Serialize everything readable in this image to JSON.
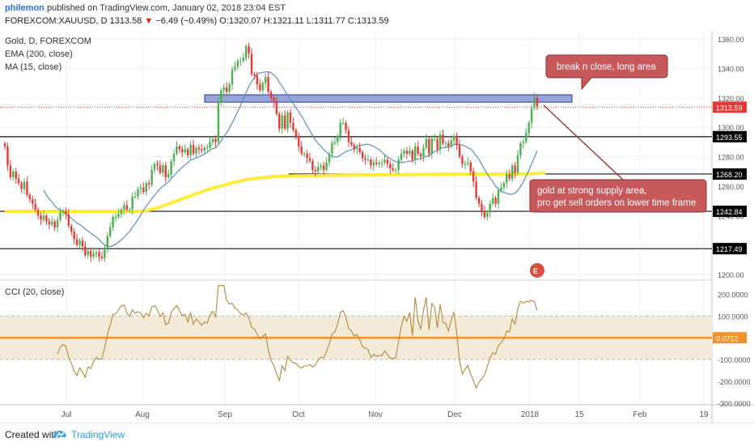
{
  "header": {
    "user": "philemon",
    "published": "published on TradingView.com, January 02, 2018 23:04 EST",
    "symbol": "FOREXCOM:XAUUSD, D",
    "last": "1313.58",
    "change": "−6.49 (−0.49%)",
    "open": "O:1320.07",
    "high": "H:1321.11",
    "low": "L:1311.77",
    "close": "C:1313.59"
  },
  "legend": {
    "title": "Gold, D, FOREXCOM",
    "ema": "EMA (200, close)",
    "ma": "MA (15, close)",
    "cci": "CCI (20, close)"
  },
  "annotations": {
    "top": "break n close, long area",
    "bottom_line1": "gold at strong supply area,",
    "bottom_line2": "pro get sell orders on lower time frame"
  },
  "footer": {
    "created": "Created with",
    "brand": "TradingView"
  },
  "colors": {
    "up": "#4caf50",
    "down": "#e53935",
    "ema": "#ffeb3b",
    "ma": "#5b8fbd",
    "cci": "#b08a3c",
    "cci_mid": "#f0922b",
    "cci_band": "#f3ead8",
    "supply": "#6b7fc6",
    "callout": "#c8595b"
  },
  "chart_data": [
    {
      "type": "candlestick",
      "title": "Gold, D, FOREXCOM",
      "ylim": [
        1200,
        1360
      ],
      "y_ticks": [
        "1360.00",
        "1340.00",
        "1320.00",
        "1300.00",
        "1280.00",
        "1260.00",
        "1240.00",
        "1220.00",
        "1200.00"
      ],
      "x_ticks": [
        "Jul",
        "Aug",
        "Sep",
        "Oct",
        "Nov",
        "Dec",
        "2018",
        "15",
        "Feb",
        "19"
      ],
      "price_labels": [
        {
          "value": 1313.59,
          "label": "1313.59",
          "color": "#e53935"
        },
        {
          "value": 1293.55,
          "label": "1293.55",
          "color": "#000000"
        },
        {
          "value": 1268.2,
          "label": "1268.20",
          "color": "#000000"
        },
        {
          "value": 1242.84,
          "label": "1242.84",
          "color": "#000000"
        },
        {
          "value": 1217.49,
          "label": "1217.49",
          "color": "#000000"
        }
      ],
      "horizontal_lines": [
        1293.55,
        1242.84,
        1217.49,
        1268.2
      ],
      "supply_zone": [
        1317,
        1322
      ],
      "series": [
        {
          "name": "Close",
          "values": [
            1287,
            1274,
            1266,
            1270,
            1265,
            1262,
            1258,
            1263,
            1254,
            1251,
            1248,
            1244,
            1240,
            1237,
            1240,
            1236,
            1234,
            1236,
            1232,
            1237,
            1242,
            1243,
            1241,
            1233,
            1229,
            1224,
            1220,
            1223,
            1219,
            1213,
            1216,
            1212,
            1214,
            1215,
            1212,
            1211,
            1218,
            1226,
            1232,
            1239,
            1239,
            1241,
            1244,
            1247,
            1244,
            1244,
            1253,
            1253,
            1258,
            1259,
            1256,
            1262,
            1261,
            1271,
            1275,
            1274,
            1269,
            1274,
            1266,
            1268,
            1277,
            1282,
            1287,
            1285,
            1283,
            1285,
            1281,
            1288,
            1282,
            1286,
            1285,
            1284,
            1286,
            1286,
            1290,
            1292,
            1290,
            1317,
            1325,
            1327,
            1324,
            1329,
            1339,
            1341,
            1345,
            1345,
            1347,
            1355,
            1350,
            1336,
            1335,
            1329,
            1325,
            1330,
            1334,
            1324,
            1320,
            1317,
            1309,
            1299,
            1308,
            1299,
            1310,
            1303,
            1298,
            1294,
            1287,
            1282,
            1282,
            1279,
            1277,
            1271,
            1270,
            1273,
            1274,
            1271,
            1276,
            1282,
            1289,
            1290,
            1294,
            1303,
            1303,
            1298,
            1290,
            1288,
            1285,
            1286,
            1283,
            1279,
            1278,
            1278,
            1274,
            1276,
            1275,
            1276,
            1276,
            1278,
            1275,
            1272,
            1271,
            1271,
            1278,
            1282,
            1284,
            1282,
            1284,
            1278,
            1287,
            1282,
            1280,
            1286,
            1292,
            1282,
            1292,
            1292,
            1285,
            1295,
            1289,
            1289,
            1287,
            1291,
            1294,
            1288,
            1280,
            1275,
            1275,
            1276,
            1270,
            1263,
            1252,
            1248,
            1243,
            1239,
            1242,
            1248,
            1252,
            1248,
            1257,
            1259,
            1262,
            1268,
            1265,
            1274,
            1269,
            1281,
            1289,
            1290,
            1296,
            1303,
            1313,
            1320,
            1314
          ]
        },
        {
          "name": "EMA (200, close)",
          "values": [
            1242.8,
            1242.8,
            1242.7,
            1242.8,
            1242.9,
            1242.9,
            1242.9,
            1242.9,
            1242.9,
            1242.9,
            1242.9,
            1242.9,
            1242.9,
            1242.9,
            1242.9,
            1242.9,
            1242.9,
            1242.9,
            1242.9,
            1242.8,
            1242.8,
            1242.8,
            1242.8,
            1242.8,
            1242.8,
            1242.8,
            1242.8,
            1242.8,
            1242.8,
            1242.8,
            1242.8,
            1242.8,
            1242.8,
            1242.8,
            1242.8,
            1242.8,
            1242.8,
            1242.8,
            1242.8,
            1242.8,
            1242.8,
            1242.8,
            1242.8,
            1242.8,
            1242.8,
            1242.8,
            1242.8,
            1242.8,
            1242.8,
            1242.9,
            1243.1,
            1243.4,
            1243.8,
            1244.2,
            1244.7,
            1245.2,
            1245.8,
            1246.5,
            1247.2,
            1247.8,
            1248.5,
            1249.2,
            1249.9,
            1250.6,
            1251.3,
            1252.0,
            1252.7,
            1253.4,
            1254.1,
            1254.8,
            1255.5,
            1256.1,
            1256.8,
            1257.4,
            1258.0,
            1258.5,
            1259.0,
            1259.6,
            1260.1,
            1260.6,
            1261.1,
            1261.6,
            1262.1,
            1262.6,
            1263.0,
            1263.4,
            1263.8,
            1264.2,
            1264.5,
            1264.8,
            1265.0,
            1265.3,
            1265.5,
            1265.7,
            1265.9,
            1266.1,
            1266.2,
            1266.4,
            1266.5,
            1266.6,
            1266.7,
            1266.7,
            1266.8,
            1266.8,
            1266.9,
            1266.9,
            1267.0,
            1267.0,
            1267.0,
            1267.0,
            1267.1,
            1267.1,
            1267.1,
            1267.1,
            1267.2,
            1267.2,
            1267.2,
            1267.2,
            1267.3,
            1267.3,
            1267.3,
            1267.3,
            1267.4,
            1267.4,
            1267.4,
            1267.4,
            1267.5,
            1267.5,
            1267.5,
            1267.5,
            1267.5,
            1267.6,
            1267.6,
            1267.6,
            1267.6,
            1267.6,
            1267.6,
            1267.7,
            1267.7,
            1267.7,
            1267.7,
            1267.7,
            1267.7,
            1267.8,
            1267.8,
            1267.8,
            1267.8,
            1267.8,
            1267.8,
            1267.9,
            1267.9,
            1267.9,
            1267.9,
            1267.9,
            1268.0,
            1268.0,
            1268.0,
            1268.0,
            1268.0,
            1268.0,
            1268.1,
            1268.1,
            1268.1,
            1268.1,
            1268.1,
            1268.1,
            1268.1,
            1268.2,
            1268.2,
            1268.2,
            1268.2,
            1268.2,
            1268.2,
            1268.2,
            1268.2,
            1268.2,
            1268.2,
            1268.2,
            1268.2,
            1268.2,
            1268.2,
            1268.2,
            1268.2,
            1268.2,
            1268.2,
            1268.2,
            1268.3,
            1268.3,
            1268.3,
            1268.3,
            1268.4,
            1268.5,
            1268.6,
            1268.8,
            1268.9,
            1269.1
          ]
        }
      ]
    },
    {
      "type": "line",
      "title": "CCI (20, close)",
      "ylim": [
        -300,
        250
      ],
      "y_ticks": [
        "200.0000",
        "100.0000",
        "-100.0000",
        "-200.0000",
        "-300.0000"
      ],
      "current": "0.0712",
      "band": [
        -100,
        100
      ]
    }
  ]
}
